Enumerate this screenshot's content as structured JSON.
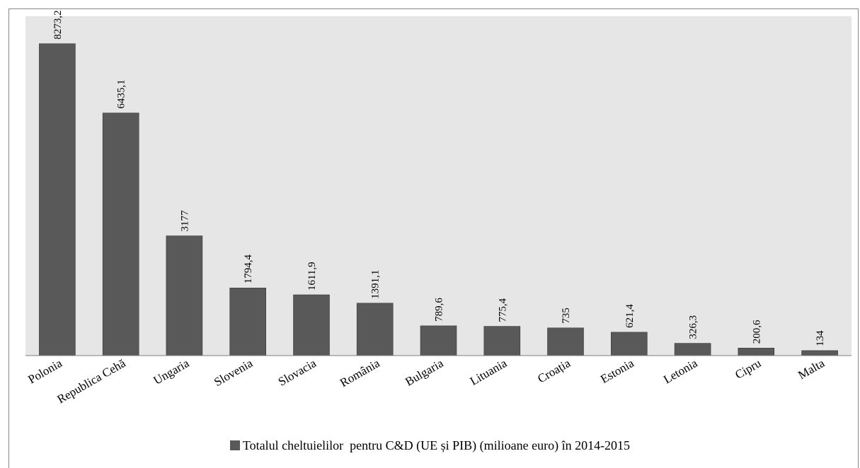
{
  "chart_data": {
    "type": "bar",
    "title": "",
    "xlabel": "",
    "ylabel": "",
    "categories": [
      "Polonia",
      "Republica Cehă",
      "Ungaria",
      "Slovenia",
      "Slovacia",
      "România",
      "Bulgaria",
      "Lituania",
      "Croația",
      "Estonia",
      "Letonia",
      "Cipru",
      "Malta"
    ],
    "series": [
      {
        "name": "Totalul cheltuielilor  pentru C&D (UE și PIB) (milioane euro) în 2014-2015",
        "values": [
          8273.2,
          6435.1,
          3177,
          1794.4,
          1611.9,
          1391.1,
          789.6,
          775.4,
          735,
          621.4,
          326.3,
          200.6,
          134
        ]
      }
    ],
    "data_labels": [
      "8273,2",
      "6435,1",
      "3177",
      "1794,4",
      "1611,9",
      "1391,1",
      "789,6",
      "775,4",
      "735",
      "621,4",
      "326,3",
      "200,6",
      "134"
    ],
    "ylim": [
      0,
      9000
    ],
    "grid": false,
    "legend_position": "bottom",
    "colors": {
      "bar": "#595959",
      "plot_background": "#e6e6e6"
    }
  }
}
